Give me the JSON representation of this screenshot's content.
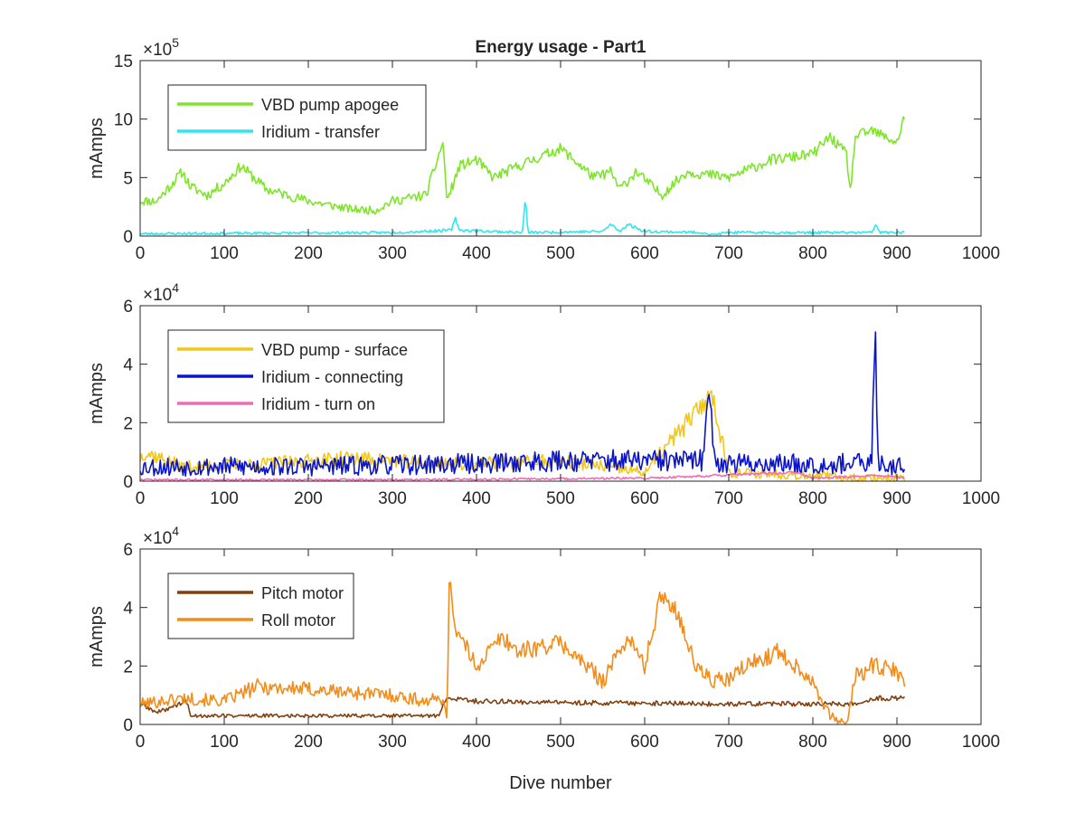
{
  "figure": {
    "title": "Energy usage - Part1",
    "xlabel": "Dive number"
  },
  "chart_data": [
    {
      "type": "line",
      "title": "Energy usage - Part1",
      "xlabel": "",
      "ylabel": "mAmps",
      "exponent_base": "×10",
      "exponent_power": "5",
      "xlim": [
        0,
        1000
      ],
      "ylim": [
        0,
        15
      ],
      "xticks": [
        0,
        100,
        200,
        300,
        400,
        500,
        600,
        700,
        800,
        900,
        1000
      ],
      "yticks": [
        0,
        5,
        10,
        15
      ],
      "legend_position": "top-left",
      "series": [
        {
          "name": "VBD pump apogee",
          "color": "#7FE52A",
          "noise": 0.45,
          "seed": 11,
          "x": [
            0,
            20,
            50,
            60,
            80,
            100,
            120,
            150,
            200,
            250,
            280,
            300,
            340,
            360,
            365,
            380,
            400,
            420,
            450,
            500,
            540,
            560,
            570,
            590,
            620,
            650,
            700,
            750,
            800,
            820,
            840,
            845,
            850,
            870,
            900,
            910
          ],
          "y": [
            3.0,
            3.0,
            5.5,
            4.2,
            3.5,
            4.5,
            6.0,
            4.0,
            3.0,
            2.3,
            2.2,
            3.0,
            3.5,
            8.0,
            3.0,
            6.0,
            6.5,
            5.0,
            6.0,
            7.5,
            5.0,
            5.5,
            4.0,
            5.5,
            3.5,
            5.5,
            5.0,
            6.5,
            7.0,
            8.5,
            7.0,
            3.5,
            8.5,
            9.0,
            8.0,
            10.5
          ]
        },
        {
          "name": "Iridium - transfer",
          "color": "#2EE6F0",
          "noise": 0.25,
          "seed": 23,
          "x": [
            0,
            300,
            370,
            375,
            380,
            455,
            458,
            461,
            550,
            560,
            570,
            580,
            600,
            670,
            680,
            700,
            870,
            875,
            880,
            910
          ],
          "y": [
            0.2,
            0.3,
            0.5,
            1.5,
            0.5,
            0.3,
            3.5,
            0.3,
            0.4,
            1.0,
            0.4,
            1.0,
            0.4,
            0.3,
            0.1,
            0.3,
            0.3,
            1.0,
            0.3,
            0.3
          ]
        }
      ]
    },
    {
      "type": "line",
      "title": "",
      "xlabel": "",
      "ylabel": "mAmps",
      "exponent_base": "×10",
      "exponent_power": "4",
      "xlim": [
        0,
        1000
      ],
      "ylim": [
        0,
        6
      ],
      "xticks": [
        0,
        100,
        200,
        300,
        400,
        500,
        600,
        700,
        800,
        900,
        1000
      ],
      "yticks": [
        0,
        2,
        4,
        6
      ],
      "legend_position": "top-left",
      "series": [
        {
          "name": "VBD pump - surface",
          "color": "#F2C71A",
          "noise": 0.35,
          "seed": 37,
          "x": [
            0,
            5,
            50,
            150,
            250,
            350,
            400,
            500,
            550,
            600,
            680,
            700,
            800,
            850,
            910
          ],
          "y": [
            0.8,
            1.0,
            0.5,
            0.6,
            0.8,
            0.6,
            0.6,
            0.7,
            0.5,
            0.3,
            3.0,
            0.3,
            0.2,
            0.1,
            0.1
          ]
        },
        {
          "name": "Iridium - connecting",
          "color": "#0A14C8",
          "noise": 0.55,
          "seed": 53,
          "x": [
            0,
            200,
            400,
            500,
            600,
            670,
            677,
            683,
            700,
            800,
            870,
            874,
            878,
            910
          ],
          "y": [
            0.5,
            0.5,
            0.6,
            0.7,
            0.7,
            0.7,
            3.6,
            0.7,
            0.6,
            0.6,
            0.6,
            5.2,
            0.6,
            0.5
          ]
        },
        {
          "name": "Iridium - turn on",
          "color": "#EE6BB5",
          "noise": 0.08,
          "seed": 71,
          "x": [
            0,
            300,
            600,
            780,
            800,
            880,
            910
          ],
          "y": [
            0.05,
            0.05,
            0.1,
            0.3,
            0.1,
            0.2,
            0.1
          ]
        }
      ]
    },
    {
      "type": "line",
      "title": "",
      "xlabel": "Dive number",
      "ylabel": "mAmps",
      "exponent_base": "×10",
      "exponent_power": "4",
      "xlim": [
        0,
        1000
      ],
      "ylim": [
        0,
        6
      ],
      "xticks": [
        0,
        100,
        200,
        300,
        400,
        500,
        600,
        700,
        800,
        900,
        1000
      ],
      "yticks": [
        0,
        2,
        4,
        6
      ],
      "legend_position": "top-left",
      "series": [
        {
          "name": "Pitch motor",
          "color": "#80400F",
          "noise": 0.12,
          "seed": 89,
          "x": [
            0,
            20,
            55,
            60,
            350,
            355,
            365,
            400,
            500,
            700,
            800,
            850,
            870,
            910
          ],
          "y": [
            0.7,
            0.4,
            0.8,
            0.3,
            0.3,
            0.3,
            0.9,
            0.8,
            0.75,
            0.7,
            0.7,
            0.7,
            0.9,
            0.9
          ]
        },
        {
          "name": "Roll motor",
          "color": "#F28C1A",
          "noise": 0.3,
          "seed": 101,
          "x": [
            0,
            50,
            100,
            140,
            200,
            250,
            300,
            340,
            362,
            365,
            368,
            373,
            380,
            400,
            430,
            450,
            500,
            550,
            580,
            600,
            620,
            640,
            660,
            680,
            700,
            720,
            760,
            780,
            800,
            820,
            840,
            850,
            870,
            900,
            910
          ],
          "y": [
            0.7,
            0.9,
            0.8,
            1.3,
            1.2,
            1.1,
            1.0,
            0.8,
            0.9,
            0.0,
            5.5,
            3.5,
            3.0,
            2.0,
            3.0,
            2.5,
            2.8,
            1.5,
            3.0,
            2.0,
            4.5,
            3.8,
            2.0,
            1.5,
            1.5,
            2.0,
            2.5,
            2.0,
            1.5,
            0.3,
            0.0,
            1.6,
            2.0,
            1.8,
            1.4
          ]
        }
      ]
    }
  ]
}
